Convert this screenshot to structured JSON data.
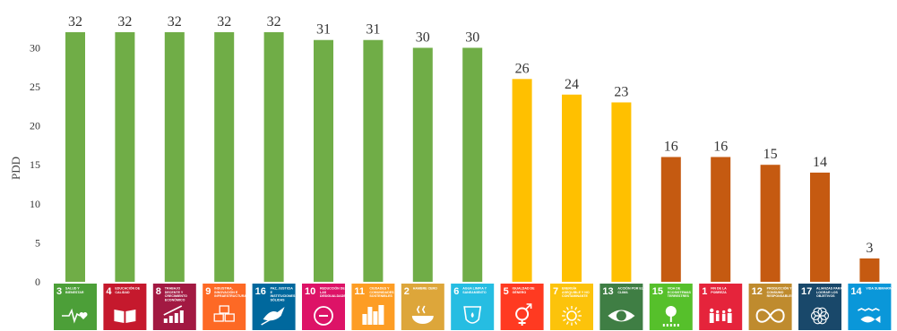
{
  "chart_data": {
    "type": "bar",
    "ylabel": "PDD",
    "ylim": [
      0,
      32
    ],
    "yticks": [
      0,
      5,
      10,
      15,
      20,
      25,
      30
    ],
    "grid": false,
    "legend": "none",
    "categories": [
      {
        "sdg_number": "3",
        "name": "SALUD Y BIENESTAR",
        "icon": "heartbeat-icon",
        "badge_color": "#4c9f38"
      },
      {
        "sdg_number": "4",
        "name": "EDUCACIÓN DE CALIDAD",
        "icon": "book-icon",
        "badge_color": "#c5192d"
      },
      {
        "sdg_number": "8",
        "name": "TRABAJO DECENTE Y CRECIMIENTO ECONÓMICO",
        "icon": "growth-chart-icon",
        "badge_color": "#a21942"
      },
      {
        "sdg_number": "9",
        "name": "INDUSTRIA, INNOVACIÓN E INFRAESTRUCTURA",
        "icon": "cubes-icon",
        "badge_color": "#fd6925"
      },
      {
        "sdg_number": "16",
        "name": "PAZ, JUSTICIA E INSTITUCIONES SÓLIDAS",
        "icon": "dove-icon",
        "badge_color": "#00689d"
      },
      {
        "sdg_number": "10",
        "name": "REDUCCIÓN DE LAS DESIGUALDADES",
        "icon": "equality-icon",
        "badge_color": "#dd1367"
      },
      {
        "sdg_number": "11",
        "name": "CIUDADES Y COMUNIDADES SOSTENIBLES",
        "icon": "city-icon",
        "badge_color": "#fd9d24"
      },
      {
        "sdg_number": "2",
        "name": "HAMBRE CERO",
        "icon": "bowl-icon",
        "badge_color": "#dda63a"
      },
      {
        "sdg_number": "6",
        "name": "AGUA LIMPIA Y SANEAMIENTO",
        "icon": "water-drop-icon",
        "badge_color": "#26bde2"
      },
      {
        "sdg_number": "5",
        "name": "IGUALDAD DE GÉNERO",
        "icon": "gender-icon",
        "badge_color": "#ff3a21"
      },
      {
        "sdg_number": "7",
        "name": "ENERGÍA ASEQUIBLE Y NO CONTAMINANTE",
        "icon": "sun-icon",
        "badge_color": "#fcc30b"
      },
      {
        "sdg_number": "13",
        "name": "ACCIÓN POR EL CLIMA",
        "icon": "eye-earth-icon",
        "badge_color": "#3f7e44"
      },
      {
        "sdg_number": "15",
        "name": "VIDA DE ECOSISTEMAS TERRESTRES",
        "icon": "tree-icon",
        "badge_color": "#56c02b"
      },
      {
        "sdg_number": "1",
        "name": "FIN DE LA POBREZA",
        "icon": "family-icon",
        "badge_color": "#e5243b"
      },
      {
        "sdg_number": "12",
        "name": "PRODUCCIÓN Y CONSUMO RESPONSABLES",
        "icon": "infinity-icon",
        "badge_color": "#bf8b2e"
      },
      {
        "sdg_number": "17",
        "name": "ALIANZAS PARA LOGRAR LOS OBJETIVOS",
        "icon": "flower-icon",
        "badge_color": "#19486a"
      },
      {
        "sdg_number": "14",
        "name": "VIDA SUBMARINA",
        "icon": "fish-icon",
        "badge_color": "#0a97d9"
      }
    ],
    "values": [
      32,
      32,
      32,
      32,
      32,
      31,
      31,
      30,
      30,
      26,
      24,
      23,
      16,
      16,
      15,
      14,
      3
    ],
    "bar_colors": [
      "#70ad47",
      "#70ad47",
      "#70ad47",
      "#70ad47",
      "#70ad47",
      "#70ad47",
      "#70ad47",
      "#70ad47",
      "#70ad47",
      "#ffc000",
      "#ffc000",
      "#ffc000",
      "#c55a11",
      "#c55a11",
      "#c55a11",
      "#c55a11",
      "#c55a11"
    ]
  }
}
